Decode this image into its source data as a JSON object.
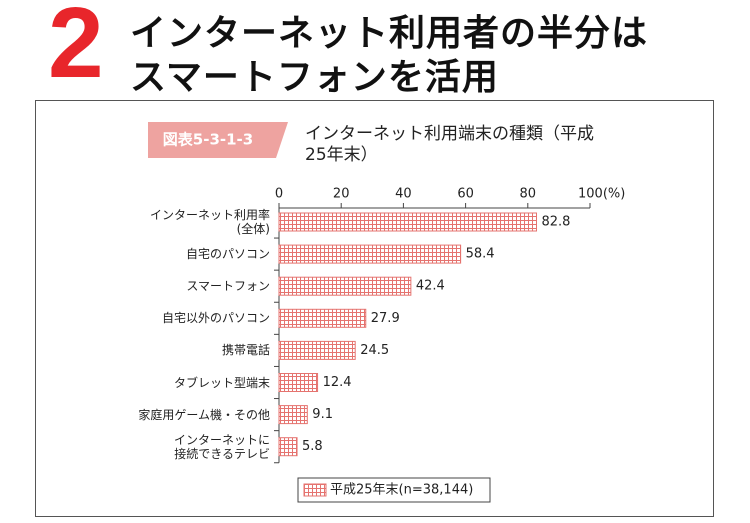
{
  "heading": {
    "number": "2",
    "lines": [
      "インターネット利用者の半分は",
      "スマートフォンを活用"
    ]
  },
  "chart_data": {
    "type": "bar",
    "figure_label": "図表5-3-1-3",
    "title": "インターネット利用端末の種類（平成\n25年末）",
    "categories": [
      "インターネット利用率\n(全体)",
      "自宅のパソコン",
      "スマートフォン",
      "自宅以外のパソコン",
      "携帯電話",
      "タブレット型端末",
      "家庭用ゲーム機・その他",
      "インターネットに\n接続できるテレビ"
    ],
    "series": [
      {
        "name": "平成25年末(n=38,144)",
        "color": "#e5736f",
        "values": [
          82.8,
          58.4,
          42.4,
          27.9,
          24.5,
          12.4,
          9.1,
          5.8
        ]
      }
    ],
    "xlim": [
      0,
      100
    ],
    "xticks": [
      0,
      20,
      40,
      60,
      80,
      {
        "value": 100,
        "label": "100(%)"
      }
    ]
  }
}
